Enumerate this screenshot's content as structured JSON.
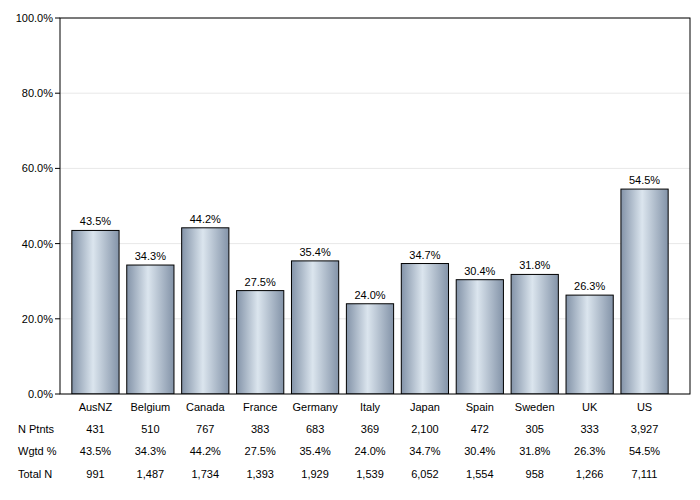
{
  "chart_data": {
    "type": "bar",
    "categories": [
      "AusNZ",
      "Belgium",
      "Canada",
      "France",
      "Germany",
      "Italy",
      "Japan",
      "Spain",
      "Sweden",
      "UK",
      "US"
    ],
    "values": [
      43.5,
      34.3,
      44.2,
      27.5,
      35.4,
      24.0,
      34.7,
      30.4,
      31.8,
      26.3,
      54.5
    ],
    "value_labels": [
      "43.5%",
      "34.3%",
      "44.2%",
      "27.5%",
      "35.4%",
      "24.0%",
      "34.7%",
      "30.4%",
      "31.8%",
      "26.3%",
      "54.5%"
    ],
    "color": "#a9b8c8",
    "ylim": [
      0,
      100
    ],
    "yticks": [
      {
        "value": 0,
        "label": "0.0%"
      },
      {
        "value": 20,
        "label": "20.0%"
      },
      {
        "value": 40,
        "label": "40.0%"
      },
      {
        "value": 60,
        "label": "60.0%"
      },
      {
        "value": 80,
        "label": "80.0%"
      },
      {
        "value": 100,
        "label": "100.0%"
      }
    ],
    "grid": true,
    "data_labels": true
  },
  "table": {
    "rows": [
      {
        "label": "N Ptnts",
        "cells": [
          "431",
          "510",
          "767",
          "383",
          "683",
          "369",
          "2,100",
          "472",
          "305",
          "333",
          "3,927"
        ]
      },
      {
        "label": "Wgtd %",
        "cells": [
          "43.5%",
          "34.3%",
          "44.2%",
          "27.5%",
          "35.4%",
          "24.0%",
          "34.7%",
          "30.4%",
          "31.8%",
          "26.3%",
          "54.5%"
        ]
      },
      {
        "label": "Total N",
        "cells": [
          "991",
          "1,487",
          "1,734",
          "1,393",
          "1,929",
          "1,539",
          "6,052",
          "1,554",
          "958",
          "1,266",
          "7,111"
        ]
      }
    ]
  }
}
